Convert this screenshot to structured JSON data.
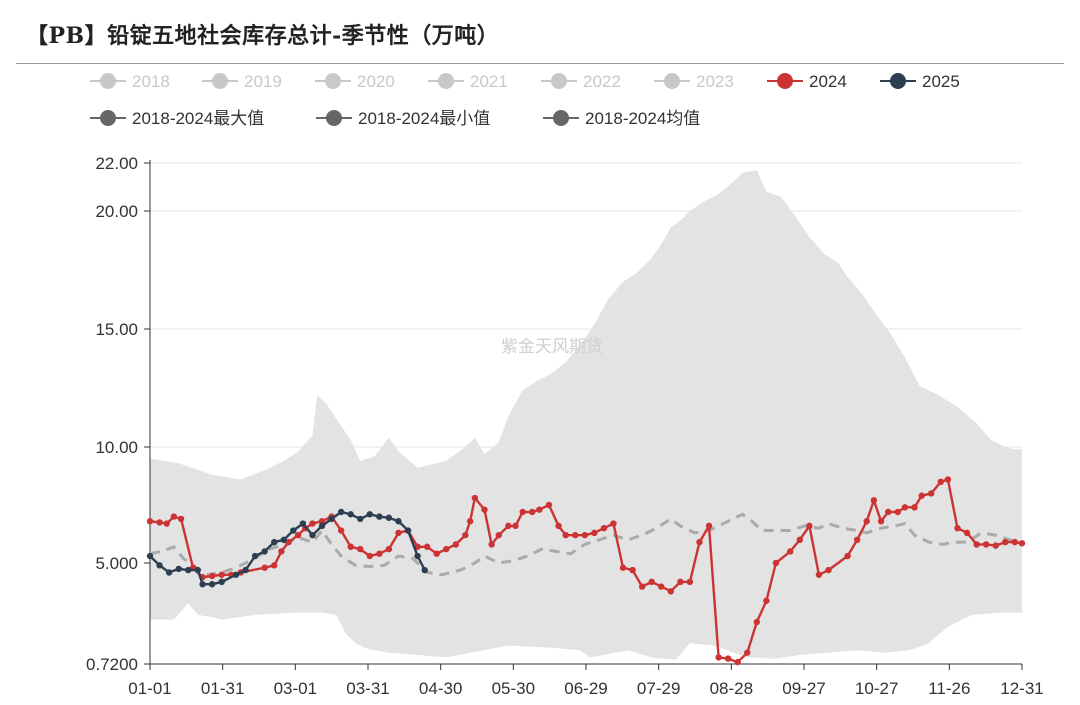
{
  "title": "【PB】铅锭五地社会库存总计-季节性（万吨）",
  "watermark": "紫金天风期货",
  "colors": {
    "band": "#e3e3e3",
    "avg": "#aaaaaa",
    "s2024": "#cc3333",
    "s2025": "#2d3e50",
    "inactive": "#c8c8c8",
    "dark": "#666666",
    "grid": "#e6e6e6"
  },
  "legend": {
    "row1": [
      {
        "label": "2018",
        "color": "#c8c8c8",
        "active": false
      },
      {
        "label": "2019",
        "color": "#c8c8c8",
        "active": false
      },
      {
        "label": "2020",
        "color": "#c8c8c8",
        "active": false
      },
      {
        "label": "2021",
        "color": "#c8c8c8",
        "active": false
      },
      {
        "label": "2022",
        "color": "#c8c8c8",
        "active": false
      },
      {
        "label": "2023",
        "color": "#c8c8c8",
        "active": false
      },
      {
        "label": "2024",
        "color": "#cc3333",
        "active": true
      },
      {
        "label": "2025",
        "color": "#2d3e50",
        "active": true
      }
    ],
    "row2": [
      {
        "label": "2018-2024最大值",
        "color": "#666666",
        "active": true
      },
      {
        "label": "2018-2024最小值",
        "color": "#666666",
        "active": true
      },
      {
        "label": "2018-2024均值",
        "color": "#666666",
        "active": true
      }
    ]
  },
  "chart_data": {
    "type": "line",
    "title": "【PB】铅锭五地社会库存总计-季节性（万吨）",
    "xlabel": "",
    "ylabel": "",
    "y_ticks": [
      {
        "label": "22.00",
        "value": 22
      },
      {
        "label": "20.00",
        "value": 20
      },
      {
        "label": "15.00",
        "value": 15
      },
      {
        "label": "10.00",
        "value": 10
      },
      {
        "label": "5.000",
        "value": 5
      },
      {
        "label": "0.7200",
        "value": 0.72
      }
    ],
    "ylim": [
      0.72,
      22
    ],
    "x_ticks": [
      "01-01",
      "01-31",
      "03-01",
      "03-31",
      "04-30",
      "05-30",
      "06-29",
      "07-29",
      "08-28",
      "09-27",
      "10-27",
      "11-26",
      "12-31"
    ],
    "xlim_days": [
      0,
      365
    ],
    "grid": true,
    "legend_position": "top",
    "band_max": [
      [
        0,
        9.5
      ],
      [
        12,
        9.3
      ],
      [
        26,
        8.8
      ],
      [
        38,
        8.6
      ],
      [
        48,
        9.0
      ],
      [
        56,
        9.4
      ],
      [
        62,
        9.8
      ],
      [
        68,
        10.5
      ],
      [
        70,
        12.2
      ],
      [
        74,
        11.8
      ],
      [
        78,
        11.2
      ],
      [
        84,
        10.3
      ],
      [
        88,
        9.4
      ],
      [
        94,
        9.6
      ],
      [
        100,
        10.4
      ],
      [
        104,
        9.8
      ],
      [
        112,
        9.1
      ],
      [
        124,
        9.4
      ],
      [
        132,
        10.0
      ],
      [
        136,
        10.4
      ],
      [
        140,
        9.7
      ],
      [
        146,
        10.2
      ],
      [
        150,
        11.3
      ],
      [
        156,
        12.4
      ],
      [
        162,
        12.8
      ],
      [
        168,
        13.1
      ],
      [
        174,
        13.6
      ],
      [
        180,
        14.3
      ],
      [
        186,
        15.2
      ],
      [
        192,
        16.3
      ],
      [
        198,
        17.0
      ],
      [
        204,
        17.4
      ],
      [
        210,
        18.0
      ],
      [
        214,
        18.6
      ],
      [
        218,
        19.3
      ],
      [
        222,
        19.6
      ],
      [
        226,
        20.0
      ],
      [
        232,
        20.4
      ],
      [
        238,
        20.7
      ],
      [
        244,
        21.2
      ],
      [
        248,
        21.6
      ],
      [
        254,
        21.7
      ],
      [
        258,
        20.8
      ],
      [
        264,
        20.6
      ],
      [
        270,
        19.8
      ],
      [
        276,
        18.9
      ],
      [
        282,
        18.2
      ],
      [
        288,
        17.8
      ],
      [
        292,
        17.2
      ],
      [
        298,
        16.5
      ],
      [
        304,
        15.6
      ],
      [
        310,
        14.8
      ],
      [
        316,
        13.8
      ],
      [
        322,
        12.6
      ],
      [
        330,
        12.2
      ],
      [
        338,
        11.7
      ],
      [
        346,
        11.0
      ],
      [
        352,
        10.3
      ],
      [
        358,
        10.0
      ],
      [
        362,
        9.9
      ],
      [
        365,
        9.9
      ]
    ],
    "band_min": [
      [
        0,
        2.6
      ],
      [
        4,
        2.6
      ],
      [
        10,
        2.6
      ],
      [
        16,
        3.3
      ],
      [
        20,
        2.8
      ],
      [
        26,
        2.7
      ],
      [
        30,
        2.6
      ],
      [
        44,
        2.8
      ],
      [
        60,
        2.9
      ],
      [
        72,
        2.9
      ],
      [
        78,
        2.8
      ],
      [
        82,
        2.0
      ],
      [
        86,
        1.6
      ],
      [
        90,
        1.4
      ],
      [
        94,
        1.3
      ],
      [
        100,
        1.2
      ],
      [
        112,
        1.1
      ],
      [
        124,
        1.0
      ],
      [
        134,
        1.2
      ],
      [
        150,
        1.5
      ],
      [
        170,
        1.4
      ],
      [
        180,
        1.3
      ],
      [
        184,
        1.0
      ],
      [
        190,
        1.1
      ],
      [
        200,
        1.3
      ],
      [
        210,
        1.0
      ],
      [
        220,
        0.9
      ],
      [
        226,
        1.6
      ],
      [
        236,
        1.5
      ],
      [
        250,
        1.0
      ],
      [
        262,
        0.95
      ],
      [
        272,
        1.1
      ],
      [
        284,
        1.2
      ],
      [
        296,
        1.3
      ],
      [
        308,
        1.2
      ],
      [
        318,
        1.3
      ],
      [
        326,
        1.6
      ],
      [
        334,
        2.3
      ],
      [
        344,
        2.8
      ],
      [
        356,
        2.9
      ],
      [
        365,
        2.9
      ]
    ],
    "series": [
      {
        "name": "2018-2024均值",
        "style": "dashed",
        "points": [
          [
            0,
            5.4
          ],
          [
            5,
            5.5
          ],
          [
            10,
            5.7
          ],
          [
            14,
            5.2
          ],
          [
            18,
            4.9
          ],
          [
            24,
            4.5
          ],
          [
            30,
            4.6
          ],
          [
            36,
            4.8
          ],
          [
            42,
            5.1
          ],
          [
            50,
            5.6
          ],
          [
            56,
            5.8
          ],
          [
            62,
            6.1
          ],
          [
            68,
            5.9
          ],
          [
            72,
            6.4
          ],
          [
            76,
            5.8
          ],
          [
            80,
            5.3
          ],
          [
            86,
            4.9
          ],
          [
            92,
            4.85
          ],
          [
            98,
            4.9
          ],
          [
            104,
            5.3
          ],
          [
            110,
            5.2
          ],
          [
            116,
            4.6
          ],
          [
            122,
            4.5
          ],
          [
            130,
            4.7
          ],
          [
            136,
            5.0
          ],
          [
            140,
            5.3
          ],
          [
            146,
            5.0
          ],
          [
            152,
            5.1
          ],
          [
            158,
            5.3
          ],
          [
            164,
            5.6
          ],
          [
            170,
            5.5
          ],
          [
            176,
            5.4
          ],
          [
            182,
            5.8
          ],
          [
            188,
            6.0
          ],
          [
            194,
            6.2
          ],
          [
            200,
            6.0
          ],
          [
            206,
            6.2
          ],
          [
            212,
            6.5
          ],
          [
            218,
            6.9
          ],
          [
            222,
            6.6
          ],
          [
            228,
            6.3
          ],
          [
            234,
            6.4
          ],
          [
            238,
            6.6
          ],
          [
            244,
            6.9
          ],
          [
            248,
            7.1
          ],
          [
            252,
            6.8
          ],
          [
            256,
            6.4
          ],
          [
            262,
            6.4
          ],
          [
            268,
            6.4
          ],
          [
            274,
            6.6
          ],
          [
            280,
            6.5
          ],
          [
            284,
            6.7
          ],
          [
            290,
            6.5
          ],
          [
            296,
            6.4
          ],
          [
            300,
            6.3
          ],
          [
            306,
            6.5
          ],
          [
            312,
            6.6
          ],
          [
            316,
            6.7
          ],
          [
            320,
            6.2
          ],
          [
            326,
            5.9
          ],
          [
            332,
            5.8
          ],
          [
            336,
            5.9
          ],
          [
            342,
            5.9
          ],
          [
            348,
            6.3
          ],
          [
            354,
            6.2
          ],
          [
            360,
            6.0
          ],
          [
            365,
            5.8
          ]
        ]
      },
      {
        "name": "2024",
        "style": "solid",
        "points": [
          [
            0,
            6.8
          ],
          [
            4,
            6.75
          ],
          [
            7,
            6.7
          ],
          [
            10,
            7.0
          ],
          [
            13,
            6.9
          ],
          [
            18,
            4.8
          ],
          [
            22,
            4.4
          ],
          [
            26,
            4.45
          ],
          [
            30,
            4.5
          ],
          [
            34,
            4.5
          ],
          [
            38,
            4.6
          ],
          [
            48,
            4.8
          ],
          [
            52,
            4.9
          ],
          [
            55,
            5.5
          ],
          [
            58,
            5.9
          ],
          [
            62,
            6.2
          ],
          [
            65,
            6.5
          ],
          [
            68,
            6.7
          ],
          [
            72,
            6.8
          ],
          [
            76,
            7.0
          ],
          [
            80,
            6.4
          ],
          [
            84,
            5.7
          ],
          [
            88,
            5.6
          ],
          [
            92,
            5.3
          ],
          [
            96,
            5.4
          ],
          [
            100,
            5.6
          ],
          [
            104,
            6.3
          ],
          [
            108,
            6.4
          ],
          [
            112,
            5.7
          ],
          [
            116,
            5.7
          ],
          [
            120,
            5.4
          ],
          [
            124,
            5.6
          ],
          [
            128,
            5.8
          ],
          [
            132,
            6.2
          ],
          [
            134,
            6.8
          ],
          [
            136,
            7.8
          ],
          [
            140,
            7.3
          ],
          [
            143,
            5.8
          ],
          [
            146,
            6.2
          ],
          [
            150,
            6.6
          ],
          [
            153,
            6.6
          ],
          [
            156,
            7.2
          ],
          [
            160,
            7.2
          ],
          [
            163,
            7.3
          ],
          [
            167,
            7.5
          ],
          [
            171,
            6.6
          ],
          [
            174,
            6.2
          ],
          [
            178,
            6.2
          ],
          [
            182,
            6.2
          ],
          [
            186,
            6.3
          ],
          [
            190,
            6.5
          ],
          [
            194,
            6.7
          ],
          [
            198,
            4.8
          ],
          [
            202,
            4.7
          ],
          [
            206,
            4.0
          ],
          [
            210,
            4.2
          ],
          [
            214,
            4.0
          ],
          [
            218,
            3.8
          ],
          [
            222,
            4.2
          ],
          [
            226,
            4.2
          ],
          [
            230,
            5.9
          ],
          [
            234,
            6.6
          ],
          [
            238,
            1.0
          ],
          [
            242,
            0.95
          ],
          [
            246,
            0.8
          ],
          [
            250,
            1.2
          ],
          [
            254,
            2.5
          ],
          [
            258,
            3.4
          ],
          [
            262,
            5.0
          ],
          [
            268,
            5.5
          ],
          [
            272,
            6.0
          ],
          [
            276,
            6.6
          ],
          [
            280,
            4.5
          ],
          [
            284,
            4.7
          ],
          [
            292,
            5.3
          ],
          [
            296,
            6.0
          ],
          [
            300,
            6.8
          ],
          [
            303,
            7.7
          ],
          [
            306,
            6.8
          ],
          [
            309,
            7.2
          ],
          [
            313,
            7.2
          ],
          [
            316,
            7.4
          ],
          [
            320,
            7.4
          ],
          [
            323,
            7.9
          ],
          [
            327,
            8.0
          ],
          [
            331,
            8.5
          ],
          [
            334,
            8.6
          ],
          [
            338,
            6.5
          ],
          [
            342,
            6.3
          ],
          [
            346,
            5.8
          ],
          [
            350,
            5.8
          ],
          [
            354,
            5.75
          ],
          [
            358,
            5.9
          ],
          [
            362,
            5.9
          ],
          [
            365,
            5.85
          ]
        ]
      },
      {
        "name": "2025",
        "style": "solid",
        "points": [
          [
            0,
            5.3
          ],
          [
            4,
            4.9
          ],
          [
            8,
            4.6
          ],
          [
            12,
            4.75
          ],
          [
            16,
            4.7
          ],
          [
            20,
            4.7
          ],
          [
            22,
            4.1
          ],
          [
            26,
            4.1
          ],
          [
            30,
            4.2
          ],
          [
            36,
            4.5
          ],
          [
            40,
            4.7
          ],
          [
            44,
            5.3
          ],
          [
            48,
            5.5
          ],
          [
            52,
            5.9
          ],
          [
            56,
            6.0
          ],
          [
            60,
            6.4
          ],
          [
            64,
            6.7
          ],
          [
            68,
            6.2
          ],
          [
            72,
            6.6
          ],
          [
            76,
            6.9
          ],
          [
            80,
            7.2
          ],
          [
            84,
            7.1
          ],
          [
            88,
            6.9
          ],
          [
            92,
            7.1
          ],
          [
            96,
            7.0
          ],
          [
            100,
            6.95
          ],
          [
            104,
            6.8
          ],
          [
            108,
            6.4
          ],
          [
            112,
            5.3
          ],
          [
            115,
            4.7
          ]
        ]
      }
    ],
    "series_2024_xshift_note": ""
  }
}
